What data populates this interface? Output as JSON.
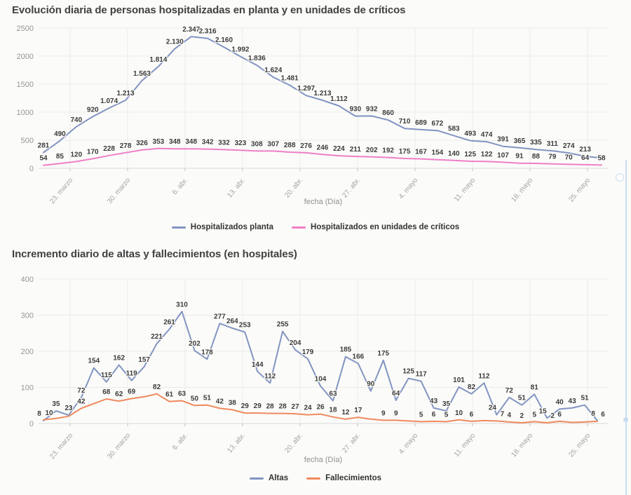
{
  "colors": {
    "background": "#fbfbf9",
    "grid": "#ebebeb",
    "baseline": "#d9d9d9",
    "tick": "#c0c0c0",
    "axis_text": "#969696",
    "data_label": "#3b3b3b",
    "title_text": "#414141",
    "container_border": "#c9dcf0"
  },
  "chart_data": [
    {
      "type": "line",
      "title": "Evolución diaria de personas hospitalizadas en planta y en unidades de críticos",
      "xlabel": "fecha (Día)",
      "ylim": [
        0,
        2500
      ],
      "yticks": [
        0,
        500,
        1000,
        1500,
        2000,
        2500
      ],
      "grid": true,
      "legend_position": "bottom",
      "xticks": [
        "23. marzo",
        "30. marzo",
        "6. abr.",
        "13. abr.",
        "20. abr.",
        "27. abr.",
        "4. mayo",
        "11. mayo",
        "18. mayo",
        "25. mayo"
      ],
      "series": [
        {
          "name": "Hospitalizados planta",
          "color": "#8294c2",
          "values": [
            281,
            490,
            740,
            920,
            1074,
            1213,
            1563,
            1814,
            2130,
            2347,
            2316,
            2160,
            1992,
            1836,
            1624,
            1481,
            1297,
            1213,
            1112,
            930,
            932,
            860,
            710,
            689,
            672,
            583,
            493,
            474,
            391,
            365,
            335,
            311,
            274,
            213,
            185
          ],
          "labels": [
            "281",
            "490",
            "740",
            "920",
            "1.074",
            "1.213",
            "1.563",
            "1.814",
            "2.130",
            "2.347",
            "2.316",
            "2.160",
            "1.992",
            "1.836",
            "1.624",
            "1.481",
            "1.297",
            "1.213",
            "1.112",
            "930",
            "932",
            "860",
            "710",
            "689",
            "672",
            "583",
            "493",
            "474",
            "391",
            "365",
            "335",
            "311",
            "274",
            "213",
            null
          ]
        },
        {
          "name": "Hospitalizados en unidades de críticos",
          "color": "#ee7fc6",
          "values": [
            54,
            85,
            120,
            170,
            228,
            278,
            326,
            353,
            348,
            348,
            342,
            332,
            323,
            308,
            307,
            288,
            276,
            246,
            224,
            211,
            202,
            192,
            175,
            167,
            154,
            140,
            125,
            122,
            107,
            91,
            88,
            79,
            70,
            64,
            58
          ],
          "labels": [
            "54",
            "85",
            "120",
            "170",
            "228",
            "278",
            "326",
            "353",
            "348",
            "348",
            "342",
            "332",
            "323",
            "308",
            "307",
            "288",
            "276",
            "246",
            "224",
            "211",
            "202",
            "192",
            "175",
            "167",
            "154",
            "140",
            "125",
            "122",
            "107",
            "91",
            "88",
            "79",
            "70",
            "64",
            "58"
          ]
        }
      ]
    },
    {
      "type": "line",
      "title": "Incremento diario de altas y fallecimientos (en hospitales)",
      "xlabel": "fecha (Día)",
      "ylim": [
        0,
        400
      ],
      "yticks": [
        0,
        100,
        200,
        300,
        400
      ],
      "grid": true,
      "legend_position": "bottom",
      "xticks": [
        "23. marzo",
        "30. marzo",
        "6. abr.",
        "13. abr.",
        "20. abr.",
        "27. abr.",
        "4. mayo",
        "11. mayo",
        "18. mayo",
        "25. mayo"
      ],
      "series": [
        {
          "name": "Altas",
          "color": "#8294c2",
          "values": [
            8,
            35,
            23,
            72,
            154,
            115,
            162,
            119,
            157,
            221,
            261,
            310,
            202,
            178,
            277,
            264,
            253,
            144,
            112,
            255,
            204,
            179,
            104,
            63,
            185,
            166,
            90,
            175,
            64,
            125,
            117,
            43,
            35,
            101,
            82,
            112,
            24,
            72,
            51,
            81,
            15,
            40,
            43,
            51,
            8
          ],
          "labels": [
            "8",
            "35",
            "23",
            "72",
            "154",
            "115",
            "162",
            "119",
            "157",
            "221",
            "261",
            "310",
            "202",
            "178",
            "277",
            "264",
            "253",
            "144",
            "112",
            "255",
            "204",
            "179",
            "104",
            "63",
            "185",
            "166",
            "90",
            "175",
            "64",
            "125",
            "117",
            "43",
            "35",
            "101",
            "82",
            "112",
            "24",
            "72",
            "51",
            "81",
            "15",
            "40",
            "43",
            "51",
            "8"
          ]
        },
        {
          "name": "Fallecimientos",
          "color": "#ef8a5d",
          "values": [
            10,
            14,
            20,
            42,
            55,
            68,
            62,
            69,
            74,
            82,
            61,
            63,
            50,
            51,
            42,
            38,
            29,
            29,
            28,
            28,
            27,
            24,
            26,
            18,
            12,
            17,
            12,
            9,
            9,
            7,
            5,
            6,
            5,
            10,
            6,
            8,
            7,
            4,
            2,
            5,
            2,
            6,
            3,
            4,
            6
          ],
          "labels": [
            "10",
            null,
            null,
            "42",
            null,
            "68",
            "62",
            "69",
            null,
            "82",
            "61",
            "63",
            "50",
            "51",
            "42",
            "38",
            "29",
            "29",
            "28",
            "28",
            "27",
            "24",
            "26",
            "18",
            "12",
            "17",
            null,
            "9",
            "9",
            null,
            "5",
            "6",
            "5",
            "10",
            "6",
            null,
            "7",
            "4",
            "2",
            "5",
            "2",
            "6",
            null,
            null,
            "6"
          ]
        }
      ]
    }
  ]
}
